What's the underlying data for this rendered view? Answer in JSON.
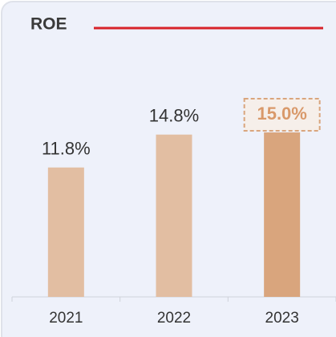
{
  "chart_data": {
    "type": "bar",
    "title": "ROE",
    "categories": [
      "2021",
      "2022",
      "2023"
    ],
    "values": [
      11.8,
      14.8,
      15.0
    ],
    "value_labels": [
      "11.8%",
      "14.8%",
      "15.0%"
    ],
    "colors": [
      "#e2bea2",
      "#e2bea2",
      "#d9a57d"
    ]
  }
}
